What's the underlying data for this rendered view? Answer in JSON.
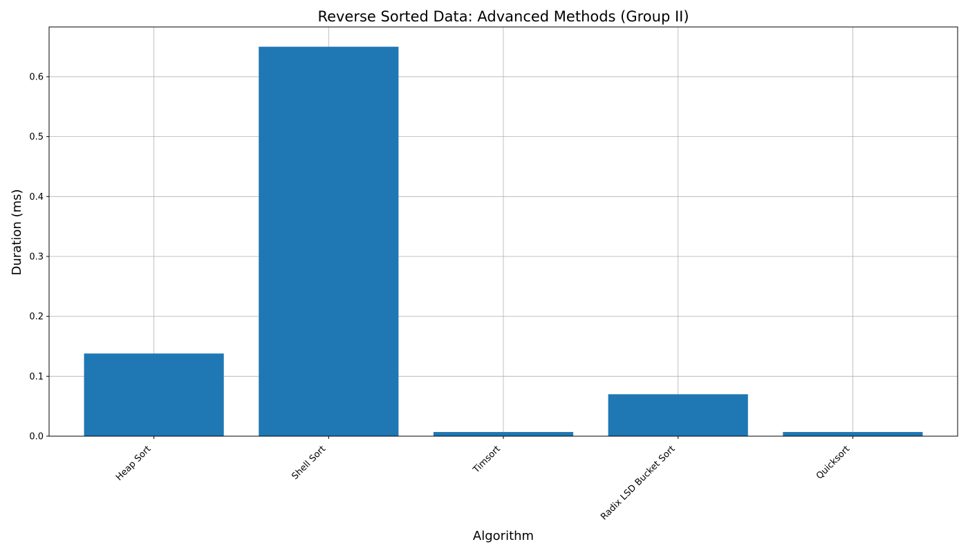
{
  "chart_data": {
    "type": "bar",
    "title": "Reverse Sorted Data: Advanced Methods (Group II)",
    "xlabel": "Algorithm",
    "ylabel": "Duration (ms)",
    "categories": [
      "Heap Sort",
      "Shell Sort",
      "Timsort",
      "Radix LSD Bucket Sort",
      "Quicksort"
    ],
    "values": [
      0.138,
      0.65,
      0.007,
      0.07,
      0.007
    ],
    "ylim": [
      0,
      0.683
    ],
    "yticks": [
      0.0,
      0.1,
      0.2,
      0.3,
      0.4,
      0.5,
      0.6
    ],
    "ytick_labels": [
      "0.0",
      "0.1",
      "0.2",
      "0.3",
      "0.4",
      "0.5",
      "0.6"
    ],
    "grid": true,
    "legend": "none",
    "bar_color": "#1f77b4"
  }
}
